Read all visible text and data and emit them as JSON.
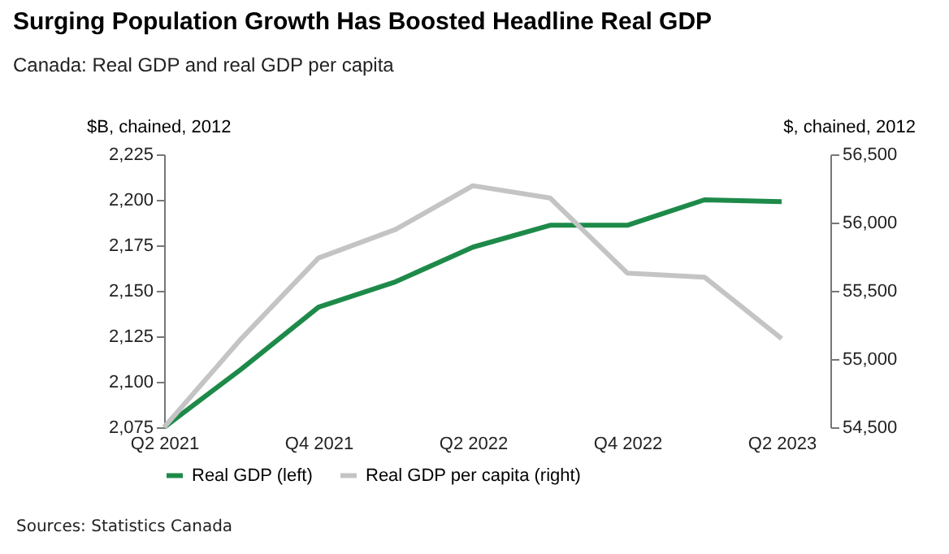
{
  "chart_data": {
    "type": "line",
    "title": "Surging Population Growth Has Boosted Headline Real GDP",
    "subtitle": "Canada: Real GDP and real GDP per capita",
    "ylabel": "$B, chained, 2012",
    "y2label": "$, chained, 2012",
    "categories": [
      "Q2 2021",
      null,
      "Q4 2021",
      null,
      "Q2 2022",
      null,
      "Q4 2022",
      null,
      "Q2 2023"
    ],
    "series": [
      {
        "name": "Real GDP (left)",
        "color": "#1e8a4a",
        "values": [
          2075,
          2107,
          2141,
          2155,
          2174,
          2186,
          2186,
          2200,
          2199
        ]
      },
      {
        "name": "Real GDP per capita (right)",
        "color": "#c4c4c4",
        "axis": "y2",
        "values": [
          54500,
          55150,
          55740,
          55950,
          56270,
          56180,
          55630,
          55600,
          55150
        ]
      }
    ],
    "ylim": [
      2075,
      2225
    ],
    "yticks": [
      {
        "value": 2075,
        "label": "2,075"
      },
      {
        "value": 2100,
        "label": "2,100"
      },
      {
        "value": 2125,
        "label": "2,125"
      },
      {
        "value": 2150,
        "label": "2,150"
      },
      {
        "value": 2175,
        "label": "2,175"
      },
      {
        "value": 2200,
        "label": "2,200"
      },
      {
        "value": 2225,
        "label": "2,225"
      }
    ],
    "y2lim": [
      54500,
      56500
    ],
    "y2ticks": [
      {
        "value": 54500,
        "label": "54,500"
      },
      {
        "value": 55000,
        "label": "55,000"
      },
      {
        "value": 55500,
        "label": "55,500"
      },
      {
        "value": 56000,
        "label": "56,000"
      },
      {
        "value": 56500,
        "label": "56,500"
      }
    ],
    "grid": false,
    "legend": "bottom",
    "marker": "none",
    "line_style": "solid",
    "annotations": [
      "Sources: Statistics Canada"
    ]
  }
}
